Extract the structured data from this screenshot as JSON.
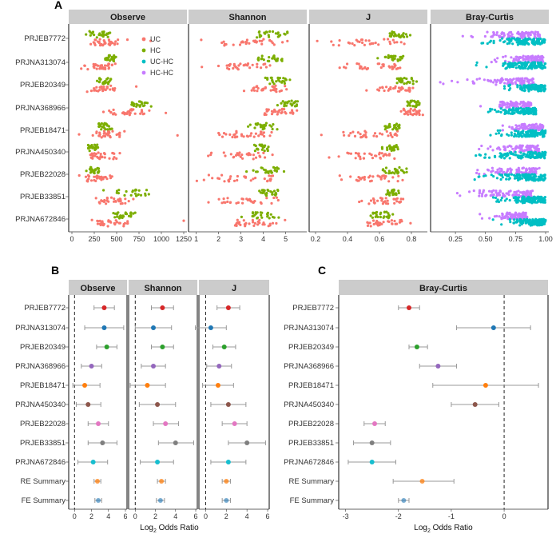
{
  "panel_letters": [
    "A",
    "B",
    "C"
  ],
  "colors": {
    "UC": "#F8766D",
    "HC": "#7CAE00",
    "UC-HC": "#00BFC4",
    "HC-HC": "#C77CFF",
    "strip_bg": "#CCCCCC",
    "panel_border": "#333333"
  },
  "chart_data": [
    {
      "panel": "A",
      "type": "scatter",
      "layout": "facet-strip-plot",
      "studies": [
        "PRJEB7772",
        "PRJNA313074",
        "PRJEB20349",
        "PRJNA368966",
        "PRJEB18471",
        "PRJNA450340",
        "PRJEB22028",
        "PRJEB33851",
        "PRJNA672846"
      ],
      "legend": {
        "position": "top-right of Observe facet",
        "entries": [
          "UC",
          "HC",
          "UC-HC",
          "HC-HC"
        ]
      },
      "facets": [
        {
          "title": "Observe",
          "xlim": [
            0,
            1250
          ],
          "ticks": [
            0,
            250,
            500,
            750,
            1000,
            1250
          ],
          "ranges": [
            {
              "UC": [
                60,
                640,
                420,
                880
              ],
              "HC": [
                120,
                470
              ]
            },
            {
              "UC": [
                80,
                560
              ],
              "HC": [
                320,
                520
              ]
            },
            {
              "UC": [
                150,
                540,
                720
              ],
              "HC": [
                250,
                470
              ]
            },
            {
              "UC": [
                250,
                900,
                1050
              ],
              "HC": [
                560,
                890
              ]
            },
            {
              "UC": [
                80,
                620,
                1180
              ],
              "HC": [
                240,
                470
              ]
            },
            {
              "UC": [
                80,
                600
              ],
              "HC": [
                130,
                320
              ]
            },
            {
              "UC": [
                70,
                460
              ],
              "HC": [
                150,
                350
              ]
            },
            {
              "UC": [
                200,
                700
              ],
              "HC": [
                350,
                950
              ]
            },
            {
              "UC": [
                120,
                720,
                1250
              ],
              "HC": [
                350,
                750
              ]
            }
          ]
        },
        {
          "title": "Shannon",
          "xlim": [
            0.8,
            5.8
          ],
          "ticks": [
            1,
            2,
            3,
            4,
            5
          ],
          "ranges": [
            {
              "UC": [
                1.0,
                5.2
              ],
              "HC": [
                3.4,
                5.1
              ]
            },
            {
              "UC": [
                1.2,
                5.0
              ],
              "HC": [
                3.3,
                4.9
              ]
            },
            {
              "UC": [
                2.8,
                5.3
              ],
              "HC": [
                3.8,
                5.3
              ]
            },
            {
              "UC": [
                3.5,
                5.7
              ],
              "HC": [
                4.6,
                5.7
              ]
            },
            {
              "UC": [
                0.9,
                5.1
              ],
              "HC": [
                3.2,
                4.8
              ]
            },
            {
              "UC": [
                1.4,
                4.7
              ],
              "HC": [
                3.3,
                4.4
              ]
            },
            {
              "UC": [
                1.0,
                5.0
              ],
              "HC": [
                3.2,
                5.1
              ]
            },
            {
              "UC": [
                1.0,
                5.0
              ],
              "HC": [
                3.5,
                4.9
              ]
            },
            {
              "UC": [
                1.9,
                5.1
              ],
              "HC": [
                3.0,
                4.8
              ]
            }
          ]
        },
        {
          "title": "J",
          "xlim": [
            0.18,
            0.88
          ],
          "ticks": [
            0.2,
            0.4,
            0.6,
            0.8
          ],
          "ranges": [
            {
              "UC": [
                0.2,
                0.8
              ],
              "HC": [
                0.62,
                0.8
              ]
            },
            {
              "UC": [
                0.33,
                0.8
              ],
              "HC": [
                0.58,
                0.78
              ]
            },
            {
              "UC": [
                0.5,
                0.85
              ],
              "HC": [
                0.66,
                0.86
              ]
            },
            {
              "UC": [
                0.7,
                0.88
              ],
              "HC": [
                0.74,
                0.87
              ]
            },
            {
              "UC": [
                0.22,
                0.8
              ],
              "HC": [
                0.58,
                0.76
              ]
            },
            {
              "UC": [
                0.28,
                0.75
              ],
              "HC": [
                0.6,
                0.72
              ]
            },
            {
              "UC": [
                0.3,
                0.8
              ],
              "HC": [
                0.55,
                0.82
              ]
            },
            {
              "UC": [
                0.42,
                0.79
              ],
              "HC": [
                0.6,
                0.75
              ]
            },
            {
              "UC": [
                0.42,
                0.8
              ],
              "HC": [
                0.5,
                0.72
              ]
            }
          ]
        },
        {
          "title": "Bray-Curtis",
          "xlim": [
            0.07,
            1.0
          ],
          "ticks": [
            0.25,
            0.5,
            0.75,
            1.0
          ],
          "tick_labels": [
            "0.25",
            "0.50",
            "0.75",
            "1.00"
          ],
          "ranges": [
            {
              "HC-HC": [
                0.25,
                0.95
              ],
              "UC-HC": [
                0.45,
                1.0
              ]
            },
            {
              "HC-HC": [
                0.55,
                0.98
              ],
              "UC-HC": [
                0.42,
                1.0
              ]
            },
            {
              "HC-HC": [
                0.1,
                0.9
              ],
              "UC-HC": [
                0.65,
                1.0
              ]
            },
            {
              "HC-HC": [
                0.45,
                0.88
              ],
              "UC-HC": [
                0.5,
                0.92
              ]
            },
            {
              "HC-HC": [
                0.6,
                0.98
              ],
              "UC-HC": [
                0.5,
                1.0
              ]
            },
            {
              "HC-HC": [
                0.38,
                0.95
              ],
              "UC-HC": [
                0.4,
                1.0
              ]
            },
            {
              "HC-HC": [
                0.15,
                0.95
              ],
              "UC-HC": [
                0.4,
                1.0
              ]
            },
            {
              "HC-HC": [
                0.1,
                0.9
              ],
              "UC-HC": [
                0.55,
                1.0
              ]
            },
            {
              "HC-HC": [
                0.4,
                0.85
              ],
              "UC-HC": [
                0.55,
                1.0
              ]
            }
          ]
        }
      ]
    },
    {
      "panel": "B",
      "type": "scatter",
      "layout": "forest-plot",
      "rows": [
        "PRJEB7772",
        "PRJNA313074",
        "PRJEB20349",
        "PRJNA368966",
        "PRJEB18471",
        "PRJNA450340",
        "PRJEB22028",
        "PRJEB33851",
        "PRJNA672846",
        "RE Summary",
        "FE Summary"
      ],
      "row_colors": [
        "#D62728",
        "#1F77B4",
        "#2CA02C",
        "#9467BD",
        "#FF7F0E",
        "#8C564B",
        "#E377C2",
        "#7F7F7F",
        "#17BECF",
        "#FF7F0E",
        "#1F77B4"
      ],
      "row_alpha": [
        1,
        1,
        1,
        1,
        1,
        1,
        1,
        1,
        1,
        0.75,
        0.6
      ],
      "xlabel": "Log2 Odds Ratio",
      "facets": [
        {
          "title": "Observe",
          "xlim": [
            -0.5,
            6
          ],
          "ticks": [
            0,
            2,
            4,
            6
          ],
          "est": [
            3.5,
            3.5,
            3.8,
            2.0,
            1.2,
            1.6,
            2.8,
            3.3,
            2.2,
            2.7,
            2.8
          ],
          "lo": [
            2.3,
            1.2,
            2.6,
            0.8,
            -0.2,
            0.2,
            1.6,
            1.6,
            0.4,
            2.3,
            2.4
          ],
          "hi": [
            4.7,
            5.8,
            5.0,
            3.2,
            3.0,
            3.1,
            4.0,
            5.0,
            3.9,
            3.1,
            3.2
          ]
        },
        {
          "title": "Shannon",
          "xlim": [
            -0.5,
            6
          ],
          "ticks": [
            0,
            2,
            4,
            6
          ],
          "est": [
            2.7,
            1.8,
            2.7,
            1.8,
            1.2,
            2.2,
            3.0,
            4.0,
            2.2,
            2.6,
            2.5
          ],
          "lo": [
            1.6,
            0.0,
            1.6,
            0.6,
            -0.5,
            0.4,
            1.8,
            2.3,
            0.5,
            2.2,
            2.1
          ],
          "hi": [
            3.8,
            3.6,
            3.8,
            3.0,
            3.0,
            4.0,
            4.3,
            5.8,
            3.8,
            3.0,
            2.9
          ]
        },
        {
          "title": "J",
          "xlim": [
            -0.5,
            6
          ],
          "ticks": [
            0,
            2,
            4,
            6
          ],
          "est": [
            2.2,
            0.5,
            1.8,
            1.3,
            1.2,
            2.2,
            2.8,
            4.0,
            2.2,
            2.0,
            2.0
          ],
          "lo": [
            1.1,
            -1.0,
            0.7,
            0.1,
            -0.3,
            0.5,
            1.6,
            2.2,
            0.5,
            1.6,
            1.6
          ],
          "hi": [
            3.3,
            2.0,
            2.9,
            2.5,
            2.7,
            3.9,
            4.0,
            5.8,
            3.9,
            2.4,
            2.4
          ]
        },
        {
          "title": "Bray-Curtis",
          "xlim": [
            -3.1,
            0.8
          ],
          "ticks": [
            -3,
            -2,
            -1,
            0
          ],
          "est": [
            -1.8,
            -0.2,
            -1.65,
            -1.25,
            -0.35,
            -0.55,
            -2.45,
            -2.5,
            -2.5,
            -1.55,
            -1.9
          ],
          "lo": [
            -2.0,
            -0.9,
            -1.8,
            -1.6,
            -1.35,
            -1.0,
            -2.65,
            -2.85,
            -2.95,
            -2.1,
            -2.0
          ],
          "hi": [
            -1.6,
            0.5,
            -1.45,
            -0.9,
            0.65,
            -0.1,
            -2.25,
            -2.15,
            -2.05,
            -0.95,
            -1.8
          ]
        }
      ]
    }
  ]
}
